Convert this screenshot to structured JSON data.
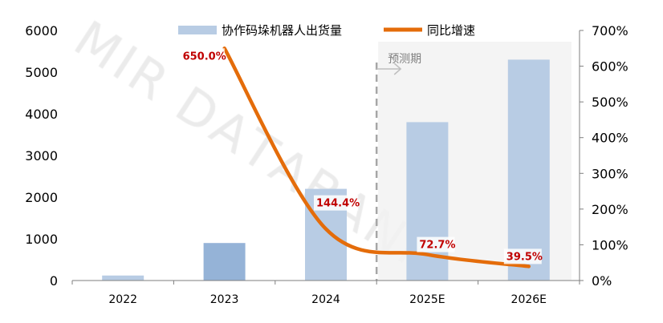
{
  "chart_data": {
    "type": "bar+line",
    "categories": [
      "2022",
      "2023",
      "2024",
      "2025E",
      "2026E"
    ],
    "series": [
      {
        "name": "协作码垛机器人出货量",
        "type": "bar",
        "axis": "left",
        "values": [
          120,
          900,
          2200,
          3800,
          5300
        ],
        "color": "#b8cce4",
        "highlight_color": "#95b3d7"
      },
      {
        "name": "同比增速",
        "type": "line",
        "axis": "right",
        "values": [
          null,
          650.0,
          144.4,
          72.7,
          39.5
        ],
        "color": "#e46c0a"
      }
    ],
    "data_labels": [
      "",
      "650.0%",
      "144.4%",
      "72.7%",
      "39.5%"
    ],
    "left_axis": {
      "ylim": [
        0,
        6000
      ],
      "ticks": [
        "0",
        "1000",
        "2000",
        "3000",
        "4000",
        "5000",
        "6000"
      ]
    },
    "right_axis": {
      "ylim": [
        0,
        700
      ],
      "ticks": [
        "0%",
        "100%",
        "200%",
        "300%",
        "400%",
        "500%",
        "600%",
        "700%"
      ]
    },
    "forecast_label": "预测期",
    "forecast_start_category": "2025E",
    "legend_position": "top",
    "watermark": "MIR DATABANK",
    "label_color": "#c00000"
  }
}
